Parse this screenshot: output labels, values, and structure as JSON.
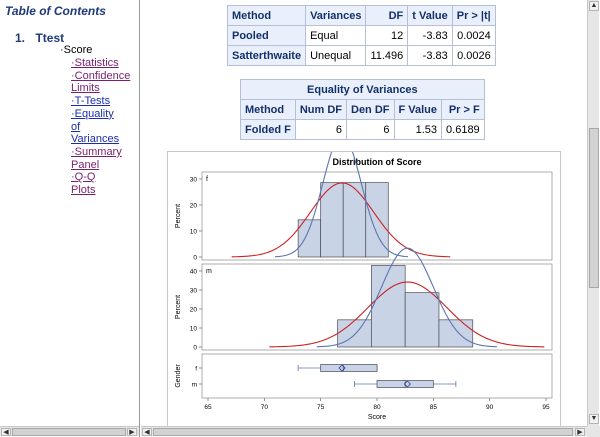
{
  "toc": {
    "title": "Table of Contents",
    "item_number": "1.",
    "item_label": "Ttest",
    "sub_bullet": "·",
    "sub_label": "Score",
    "links": [
      {
        "label": "·Statistics",
        "visited": true
      },
      {
        "label": "·Confidence",
        "visited": true
      },
      {
        "label": "Limits",
        "visited": true
      },
      {
        "label": "·T-Tests",
        "visited": false
      },
      {
        "label": "·Equality",
        "visited": false
      },
      {
        "label": "of",
        "visited": false
      },
      {
        "label": "Variances",
        "visited": false
      },
      {
        "label": "·Summary",
        "visited": true
      },
      {
        "label": "Panel",
        "visited": true
      },
      {
        "label": "·Q-Q",
        "visited": true
      },
      {
        "label": "Plots",
        "visited": true
      }
    ]
  },
  "ttests": {
    "headers": [
      "Method",
      "Variances",
      "DF",
      "t Value",
      "Pr > |t|"
    ],
    "rows": [
      [
        "Pooled",
        "Equal",
        "12",
        "-3.83",
        "0.0024"
      ],
      [
        "Satterthwaite",
        "Unequal",
        "11.496",
        "-3.83",
        "0.0026"
      ]
    ]
  },
  "equality": {
    "caption": "Equality of Variances",
    "headers": [
      "Method",
      "Num DF",
      "Den DF",
      "F Value",
      "Pr > F"
    ],
    "rows": [
      [
        "Folded F",
        "6",
        "6",
        "1.53",
        "0.6189"
      ]
    ]
  },
  "chart_data": {
    "type": "bar",
    "title": "Distribution of Score",
    "xlabel": "Score",
    "xlim": [
      65,
      95
    ],
    "x_ticks": [
      65,
      70,
      75,
      80,
      85,
      90,
      95
    ],
    "panels": [
      {
        "label": "f",
        "ylabel": "Percent",
        "ylim": [
          0,
          30
        ],
        "y_ticks": [
          0,
          10,
          20,
          30
        ],
        "bins": [
          {
            "from": 73,
            "to": 75,
            "percent": 14.3
          },
          {
            "from": 75,
            "to": 77,
            "percent": 28.6
          },
          {
            "from": 77,
            "to": 79,
            "percent": 28.6
          },
          {
            "from": 79,
            "to": 81,
            "percent": 28.6
          }
        ],
        "normal_curve": {
          "mean": 76.9,
          "sd": 2.8
        },
        "kernel_curve": {
          "mean": 76.9,
          "sd": 1.7
        }
      },
      {
        "label": "m",
        "ylabel": "Percent",
        "ylim": [
          0,
          40
        ],
        "y_ticks": [
          0,
          10,
          20,
          30,
          40
        ],
        "bins": [
          {
            "from": 76.5,
            "to": 79.5,
            "percent": 14.3
          },
          {
            "from": 79.5,
            "to": 82.5,
            "percent": 42.9
          },
          {
            "from": 82.5,
            "to": 85.5,
            "percent": 28.6
          },
          {
            "from": 85.5,
            "to": 88.5,
            "percent": 14.3
          }
        ],
        "normal_curve": {
          "mean": 82.7,
          "sd": 3.5
        },
        "kernel_curve": {
          "mean": 82.7,
          "sd": 2.3
        }
      }
    ],
    "boxplot": {
      "ylabel": "Gender",
      "groups": [
        {
          "label": "f",
          "min": 73,
          "q1": 75,
          "median": 77,
          "mean": 76.9,
          "q3": 80,
          "max": 80
        },
        {
          "label": "m",
          "min": 78,
          "q1": 80,
          "median": 82.5,
          "mean": 82.7,
          "q3": 85,
          "max": 87
        }
      ]
    },
    "colors": {
      "bar_fill": "#c9d3e6",
      "bar_stroke": "#4a4a5a",
      "normal_line": "#cc2222",
      "kernel_line": "#5b75b0"
    }
  }
}
